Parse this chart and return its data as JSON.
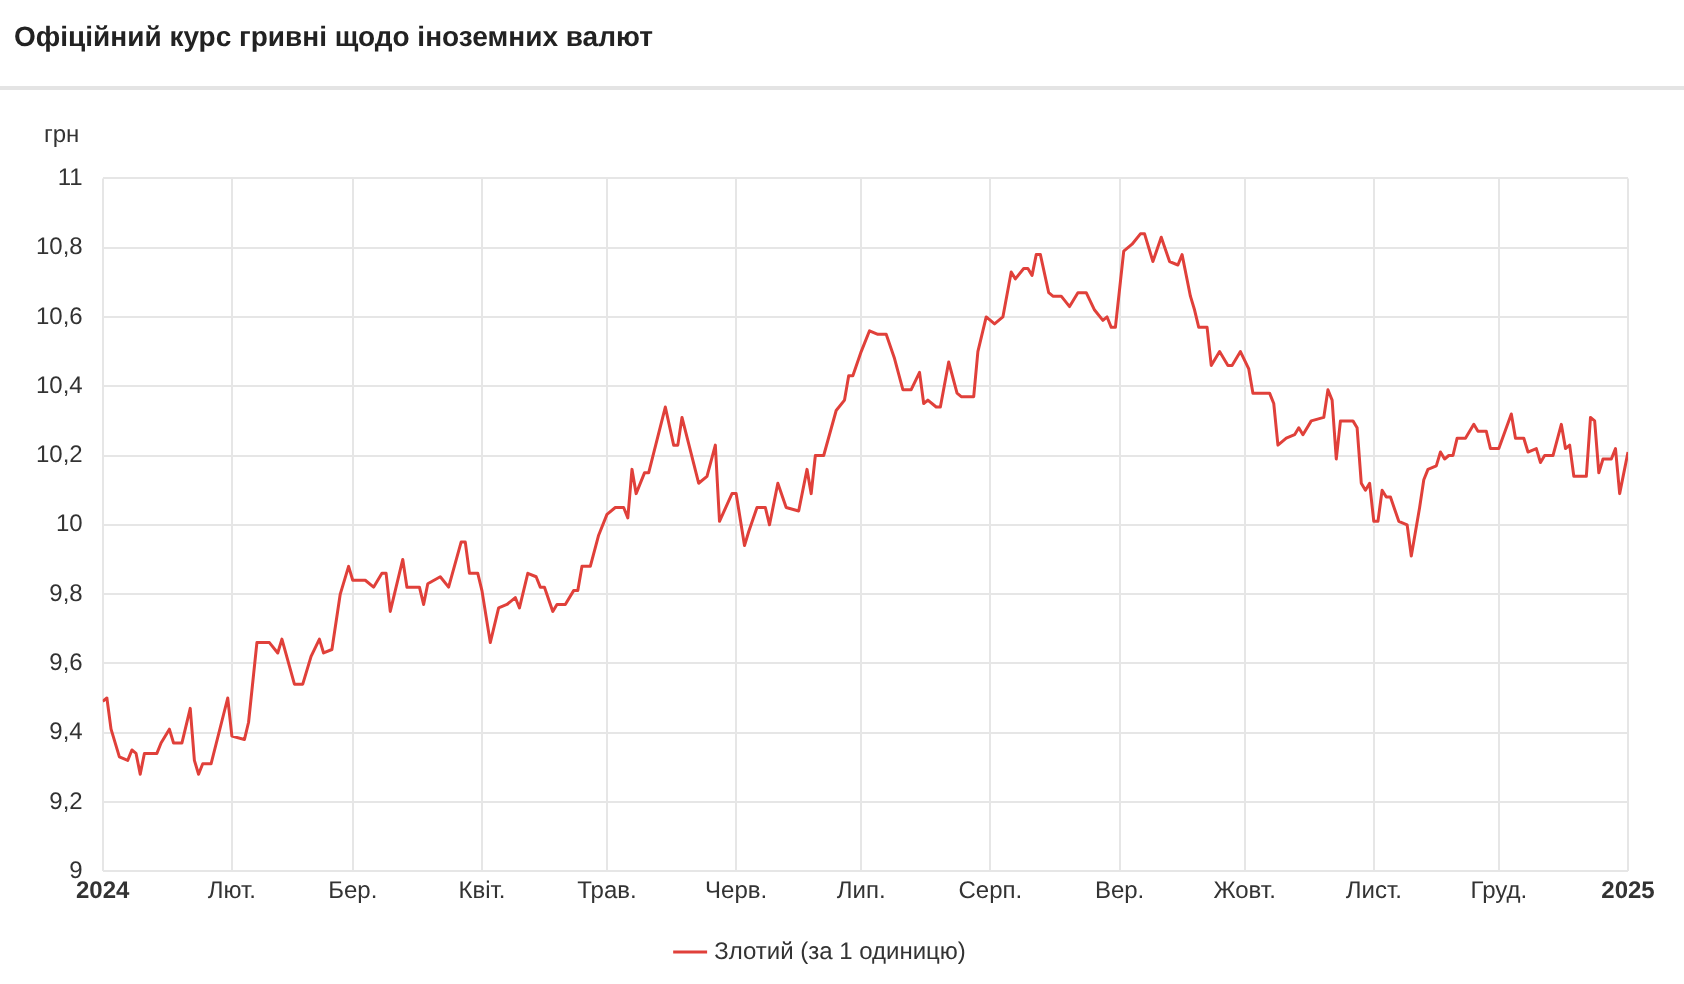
{
  "chart_data": {
    "type": "line",
    "title": "Офіційний курс гривні щодо іноземних валют",
    "ylabel": "грн",
    "xlim": [
      "2024-01-01",
      "2025-01-01"
    ],
    "xticks": [
      {
        "value": "2024-01-01",
        "label": "2024"
      },
      {
        "value": "2024-02-01",
        "label": "Лют."
      },
      {
        "value": "2024-03-01",
        "label": "Бер."
      },
      {
        "value": "2024-04-01",
        "label": "Квіт."
      },
      {
        "value": "2024-05-01",
        "label": "Трав."
      },
      {
        "value": "2024-06-01",
        "label": "Черв."
      },
      {
        "value": "2024-07-01",
        "label": "Лип."
      },
      {
        "value": "2024-08-01",
        "label": "Серп."
      },
      {
        "value": "2024-09-01",
        "label": "Вер."
      },
      {
        "value": "2024-10-01",
        "label": "Жовт."
      },
      {
        "value": "2024-11-01",
        "label": "Лист."
      },
      {
        "value": "2024-12-01",
        "label": "Груд."
      },
      {
        "value": "2025-01-01",
        "label": "2025"
      }
    ],
    "ylim": [
      9,
      11
    ],
    "yticks": [
      9,
      {
        "value": 9.2,
        "label": "9,2"
      },
      {
        "value": 9.4,
        "label": "9,4"
      },
      {
        "value": 9.6,
        "label": "9,6"
      },
      {
        "value": 9.8,
        "label": "9,8"
      },
      10,
      {
        "value": 10.2,
        "label": "10,2"
      },
      {
        "value": 10.4,
        "label": "10,4"
      },
      {
        "value": 10.6,
        "label": "10,6"
      },
      {
        "value": 10.8,
        "label": "10,8"
      },
      11
    ],
    "grid": true,
    "legend": "bottom",
    "marker": "none",
    "line_style": "solid",
    "x": [
      "2024-01-01",
      "2024-01-02",
      "2024-01-03",
      "2024-01-05",
      "2024-01-07",
      "2024-01-08",
      "2024-01-09",
      "2024-01-10",
      "2024-01-11",
      "2024-01-14",
      "2024-01-15",
      "2024-01-17",
      "2024-01-18",
      "2024-01-20",
      "2024-01-22",
      "2024-01-23",
      "2024-01-24",
      "2024-01-25",
      "2024-01-27",
      "2024-01-31",
      "2024-02-01",
      "2024-02-04",
      "2024-02-05",
      "2024-02-07",
      "2024-02-10",
      "2024-02-12",
      "2024-02-13",
      "2024-02-16",
      "2024-02-18",
      "2024-02-20",
      "2024-02-22",
      "2024-02-23",
      "2024-02-25",
      "2024-02-27",
      "2024-02-29",
      "2024-03-01",
      "2024-03-04",
      "2024-03-06",
      "2024-03-08",
      "2024-03-09",
      "2024-03-10",
      "2024-03-13",
      "2024-03-14",
      "2024-03-17",
      "2024-03-18",
      "2024-03-19",
      "2024-03-22",
      "2024-03-24",
      "2024-03-27",
      "2024-03-28",
      "2024-03-29",
      "2024-03-31",
      "2024-04-01",
      "2024-04-03",
      "2024-04-05",
      "2024-04-07",
      "2024-04-09",
      "2024-04-10",
      "2024-04-12",
      "2024-04-14",
      "2024-04-15",
      "2024-04-16",
      "2024-04-18",
      "2024-04-19",
      "2024-04-21",
      "2024-04-23",
      "2024-04-24",
      "2024-04-25",
      "2024-04-27",
      "2024-04-29",
      "2024-05-01",
      "2024-05-03",
      "2024-05-05",
      "2024-05-06",
      "2024-05-07",
      "2024-05-08",
      "2024-05-10",
      "2024-05-11",
      "2024-05-15",
      "2024-05-17",
      "2024-05-18",
      "2024-05-19",
      "2024-05-23",
      "2024-05-25",
      "2024-05-27",
      "2024-05-28",
      "2024-05-31",
      "2024-06-01",
      "2024-06-03",
      "2024-06-04",
      "2024-06-06",
      "2024-06-08",
      "2024-06-09",
      "2024-06-11",
      "2024-06-13",
      "2024-06-16",
      "2024-06-18",
      "2024-06-19",
      "2024-06-20",
      "2024-06-22",
      "2024-06-25",
      "2024-06-27",
      "2024-06-28",
      "2024-06-29",
      "2024-07-01",
      "2024-07-03",
      "2024-07-05",
      "2024-07-07",
      "2024-07-09",
      "2024-07-11",
      "2024-07-13",
      "2024-07-15",
      "2024-07-16",
      "2024-07-17",
      "2024-07-19",
      "2024-07-20",
      "2024-07-22",
      "2024-07-24",
      "2024-07-25",
      "2024-07-28",
      "2024-07-29",
      "2024-07-31",
      "2024-08-02",
      "2024-08-04",
      "2024-08-06",
      "2024-08-07",
      "2024-08-09",
      "2024-08-10",
      "2024-08-11",
      "2024-08-12",
      "2024-08-13",
      "2024-08-15",
      "2024-08-16",
      "2024-08-18",
      "2024-08-20",
      "2024-08-22",
      "2024-08-24",
      "2024-08-26",
      "2024-08-28",
      "2024-08-29",
      "2024-08-30",
      "2024-08-31",
      "2024-09-02",
      "2024-09-04",
      "2024-09-06",
      "2024-09-07",
      "2024-09-09",
      "2024-09-11",
      "2024-09-13",
      "2024-09-15",
      "2024-09-16",
      "2024-09-18",
      "2024-09-19",
      "2024-09-20",
      "2024-09-22",
      "2024-09-23",
      "2024-09-25",
      "2024-09-27",
      "2024-09-28",
      "2024-09-30",
      "2024-10-02",
      "2024-10-03",
      "2024-10-07",
      "2024-10-08",
      "2024-10-09",
      "2024-10-11",
      "2024-10-13",
      "2024-10-14",
      "2024-10-15",
      "2024-10-17",
      "2024-10-20",
      "2024-10-21",
      "2024-10-22",
      "2024-10-23",
      "2024-10-24",
      "2024-10-27",
      "2024-10-28",
      "2024-10-29",
      "2024-10-30",
      "2024-10-31",
      "2024-11-01",
      "2024-11-02",
      "2024-11-03",
      "2024-11-04",
      "2024-11-05",
      "2024-11-07",
      "2024-11-09",
      "2024-11-10",
      "2024-11-12",
      "2024-11-13",
      "2024-11-14",
      "2024-11-16",
      "2024-11-17",
      "2024-11-18",
      "2024-11-19",
      "2024-11-20",
      "2024-11-21",
      "2024-11-23",
      "2024-11-25",
      "2024-11-26",
      "2024-11-28",
      "2024-11-29",
      "2024-12-01",
      "2024-12-04",
      "2024-12-05",
      "2024-12-07",
      "2024-12-08",
      "2024-12-10",
      "2024-12-11",
      "2024-12-12",
      "2024-12-14",
      "2024-12-16",
      "2024-12-17",
      "2024-12-18",
      "2024-12-19",
      "2024-12-22",
      "2024-12-23",
      "2024-12-24",
      "2024-12-25",
      "2024-12-26",
      "2024-12-28",
      "2024-12-29",
      "2024-12-30",
      "2025-01-01"
    ],
    "series": [
      {
        "name": "Злотий (за 1 одиницю)",
        "color": "#e0403a",
        "values": [
          9.49,
          9.5,
          9.41,
          9.33,
          9.32,
          9.35,
          9.34,
          9.28,
          9.34,
          9.34,
          9.37,
          9.41,
          9.37,
          9.37,
          9.47,
          9.32,
          9.28,
          9.31,
          9.31,
          9.5,
          9.39,
          9.38,
          9.43,
          9.66,
          9.66,
          9.63,
          9.67,
          9.54,
          9.54,
          9.62,
          9.67,
          9.63,
          9.64,
          9.8,
          9.88,
          9.84,
          9.84,
          9.82,
          9.86,
          9.86,
          9.75,
          9.9,
          9.82,
          9.82,
          9.77,
          9.83,
          9.85,
          9.82,
          9.95,
          9.95,
          9.86,
          9.86,
          9.81,
          9.66,
          9.76,
          9.77,
          9.79,
          9.76,
          9.86,
          9.85,
          9.82,
          9.82,
          9.75,
          9.77,
          9.77,
          9.81,
          9.81,
          9.88,
          9.88,
          9.97,
          10.03,
          10.05,
          10.05,
          10.02,
          10.16,
          10.09,
          10.15,
          10.15,
          10.34,
          10.23,
          10.23,
          10.31,
          10.12,
          10.14,
          10.23,
          10.01,
          10.09,
          10.09,
          9.94,
          9.98,
          10.05,
          10.05,
          10.0,
          10.12,
          10.05,
          10.04,
          10.16,
          10.09,
          10.2,
          10.2,
          10.33,
          10.36,
          10.43,
          10.43,
          10.5,
          10.56,
          10.55,
          10.55,
          10.48,
          10.39,
          10.39,
          10.44,
          10.35,
          10.36,
          10.34,
          10.34,
          10.47,
          10.38,
          10.37,
          10.37,
          10.5,
          10.6,
          10.58,
          10.6,
          10.73,
          10.71,
          10.74,
          10.74,
          10.72,
          10.78,
          10.78,
          10.67,
          10.66,
          10.66,
          10.63,
          10.67,
          10.67,
          10.62,
          10.59,
          10.6,
          10.57,
          10.57,
          10.79,
          10.81,
          10.84,
          10.84,
          10.76,
          10.83,
          10.76,
          10.75,
          10.78,
          10.66,
          10.62,
          10.57,
          10.57,
          10.46,
          10.5,
          10.46,
          10.46,
          10.5,
          10.45,
          10.38,
          10.38,
          10.35,
          10.23,
          10.25,
          10.26,
          10.28,
          10.26,
          10.3,
          10.31,
          10.39,
          10.36,
          10.19,
          10.3,
          10.3,
          10.28,
          10.12,
          10.1,
          10.12,
          10.01,
          10.01,
          10.1,
          10.08,
          10.08,
          10.01,
          10.0,
          9.91,
          10.05,
          10.13,
          10.16,
          10.17,
          10.21,
          10.19,
          10.2,
          10.2,
          10.25,
          10.25,
          10.29,
          10.27,
          10.27,
          10.22,
          10.22,
          10.32,
          10.25,
          10.25,
          10.21,
          10.22,
          10.18,
          10.2,
          10.2,
          10.29,
          10.22,
          10.23,
          10.14,
          10.14,
          10.31,
          10.3,
          10.15,
          10.19,
          10.19,
          10.22,
          10.09,
          10.21
        ]
      }
    ]
  }
}
